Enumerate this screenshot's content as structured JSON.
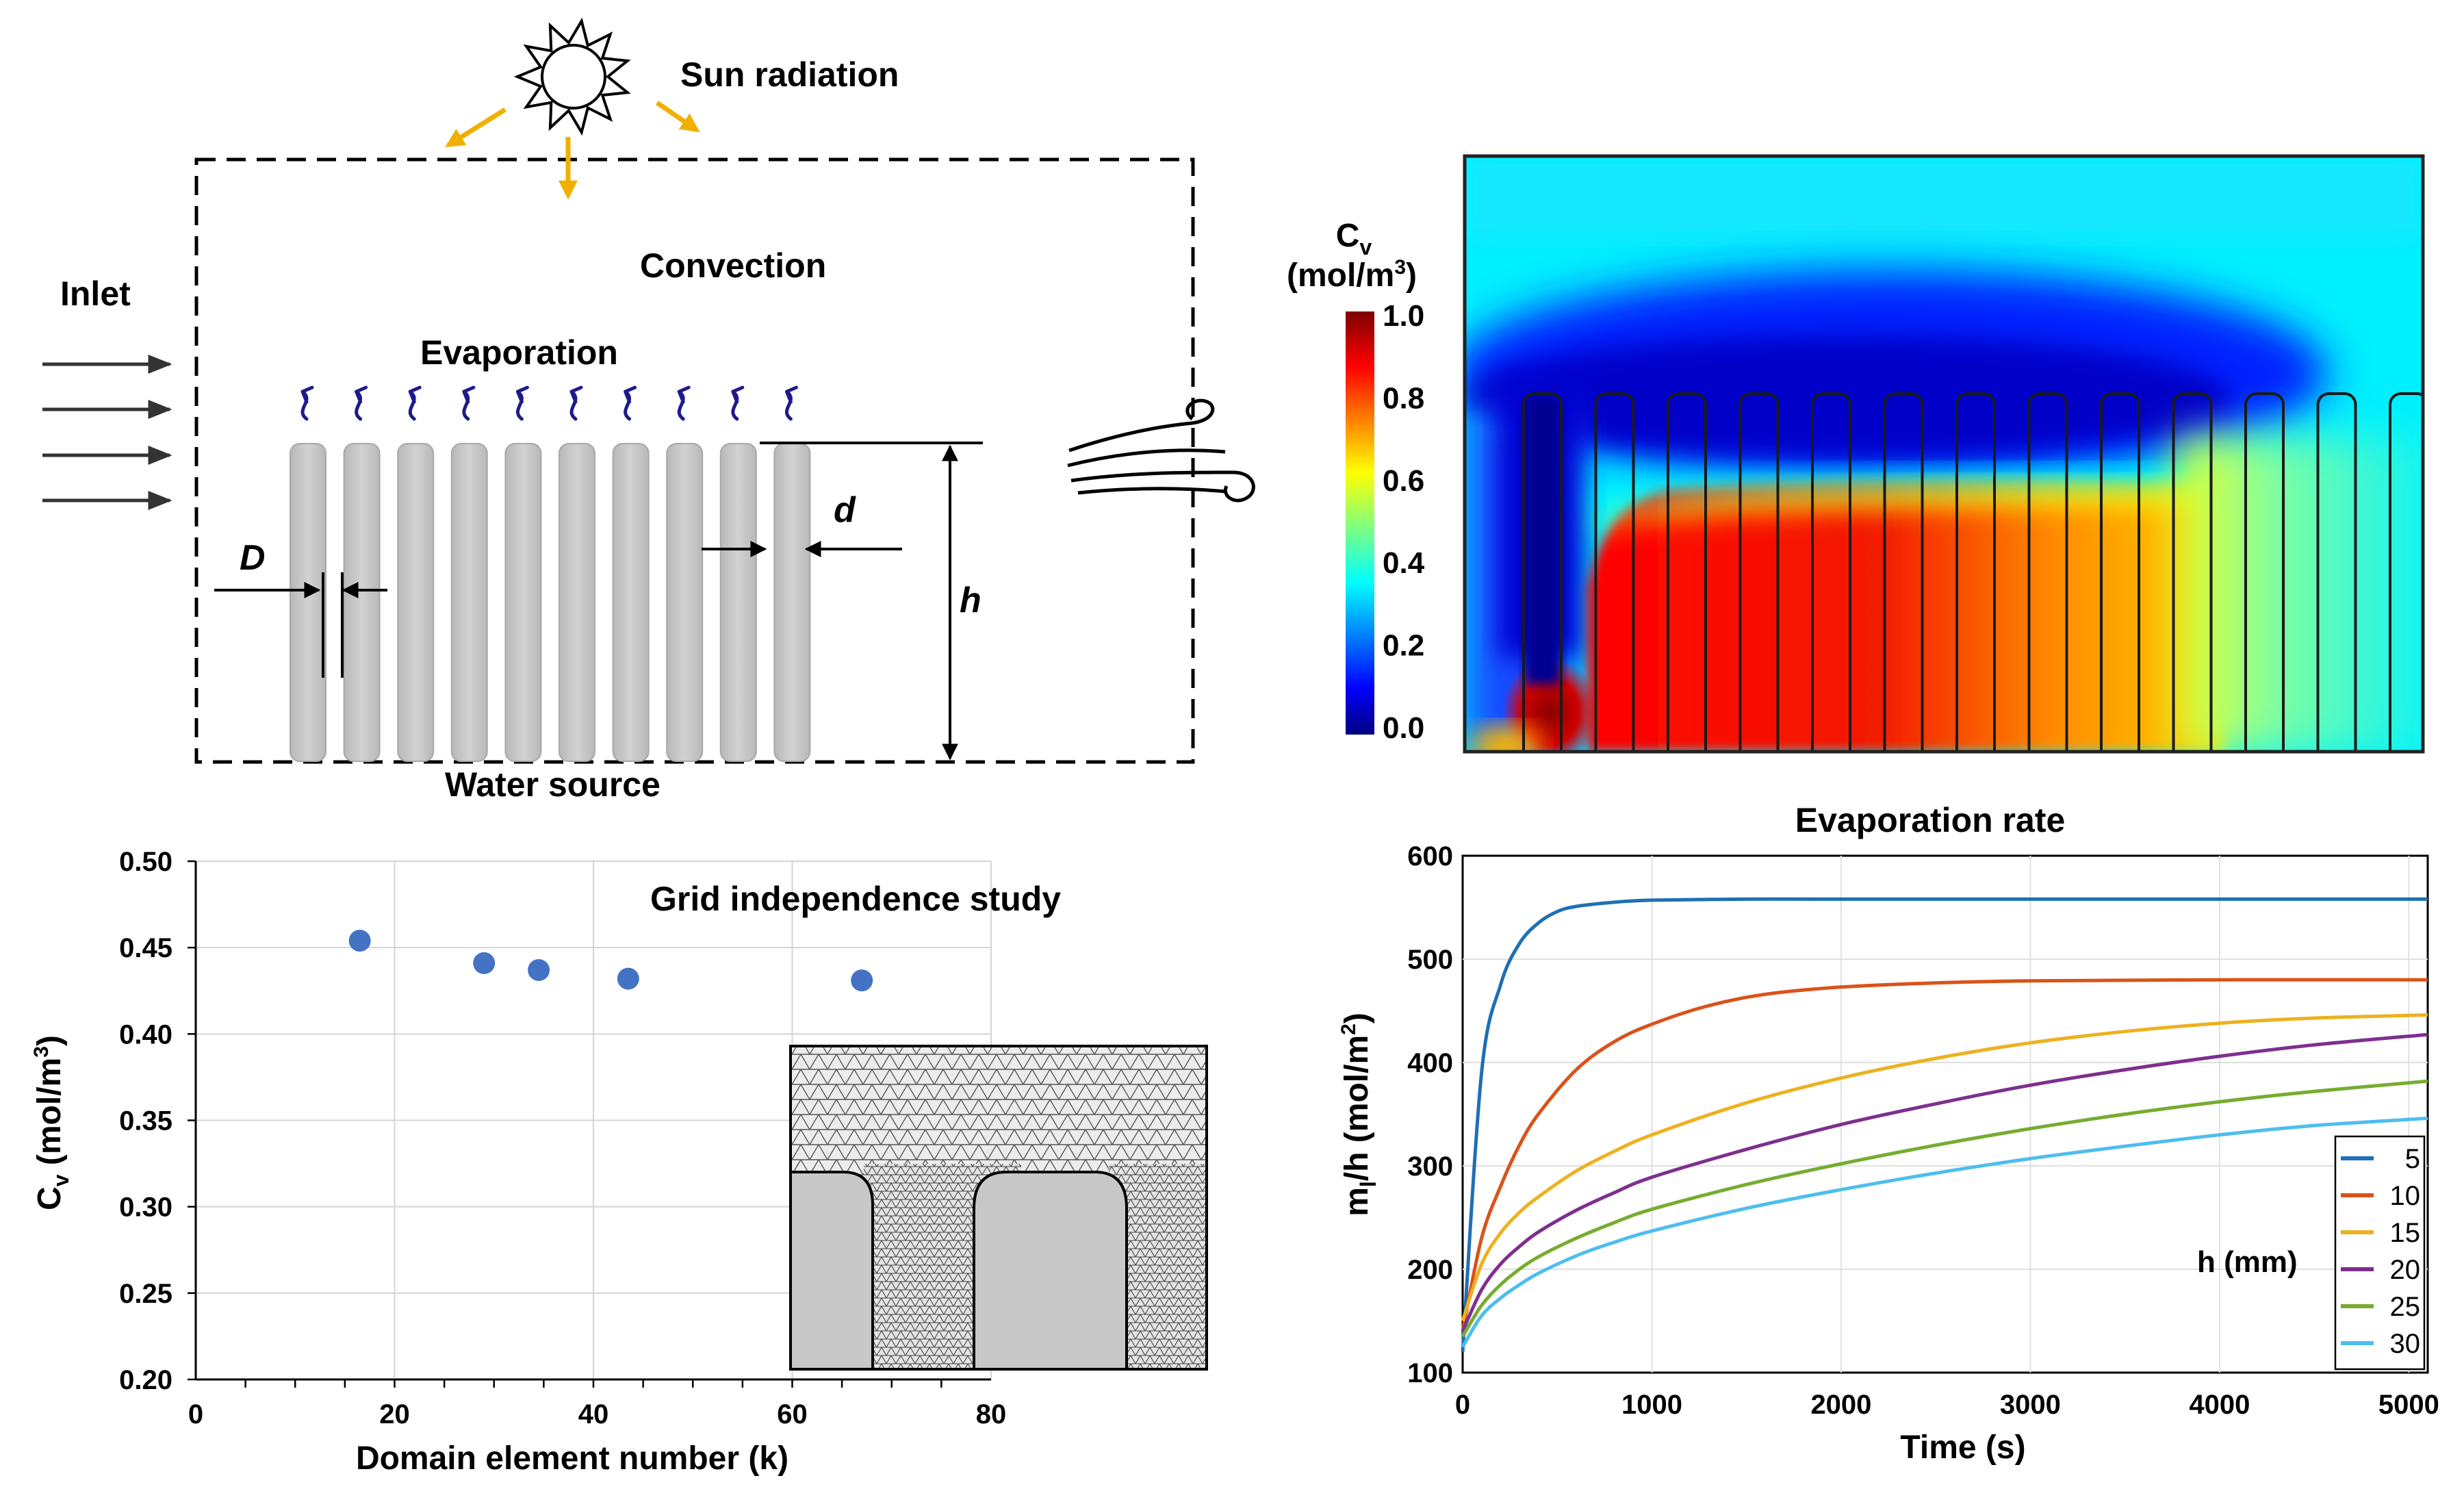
{
  "schematic": {
    "sun_label": "Sun radiation",
    "inlet_label": "Inlet",
    "convection_label": "Convection",
    "evaporation_label": "Evaporation",
    "water_source_label": "Water source",
    "dim_D": "D",
    "dim_d": "d",
    "dim_h": "h",
    "pillar_count": 10,
    "accent_color": "#f0b000",
    "vapor_color": "#1e1a8c"
  },
  "colormap": {
    "cbar_title": "C",
    "cbar_sub": "v",
    "cbar_unit_pre": "(mol/m",
    "cbar_unit_sup": "3",
    "cbar_unit_post": ")",
    "cbar_ticks": [
      "1.0",
      "0.8",
      "0.6",
      "0.4",
      "0.2",
      "0.0"
    ],
    "pillar_count": 14
  },
  "chart_data": [
    {
      "type": "scatter",
      "title": "Grid independence study",
      "xlabel": "Domain element number (k)",
      "ylabel_main": "C",
      "ylabel_sub": "v",
      "ylabel_unit_pre": " (mol/m",
      "ylabel_unit_sup": "3",
      "ylabel_unit_post": ")",
      "xlim": [
        0,
        80
      ],
      "ylim": [
        0.2,
        0.5
      ],
      "x_ticks": [
        "0",
        "20",
        "40",
        "60",
        "80"
      ],
      "y_ticks": [
        "0.50",
        "0.45",
        "0.40",
        "0.35",
        "0.30",
        "0.25",
        "0.20"
      ],
      "point_color": "#4472c4",
      "points": [
        {
          "x": 16.5,
          "y": 0.454
        },
        {
          "x": 29,
          "y": 0.441
        },
        {
          "x": 34.5,
          "y": 0.437
        },
        {
          "x": 43.5,
          "y": 0.432
        },
        {
          "x": 67,
          "y": 0.431
        }
      ],
      "grid": true
    },
    {
      "type": "line",
      "title": "Evaporation rate",
      "xlabel": "Time (s)",
      "ylabel_main": "m",
      "ylabel_sub": "l",
      "ylabel_unit_pre": "/h (mol/m",
      "ylabel_unit_sup": "2",
      "ylabel_unit_post": ")",
      "xlim": [
        0,
        5100
      ],
      "ylim": [
        100,
        600
      ],
      "x_ticks": [
        "0",
        "1000",
        "2000",
        "3000",
        "4000",
        "5000"
      ],
      "y_ticks": [
        "600",
        "500",
        "400",
        "300",
        "200",
        "100"
      ],
      "legend_title": "h (mm)",
      "legend_position": "bottom-right",
      "grid": true,
      "series": [
        {
          "name": "5",
          "color": "#1f6fb4",
          "points": [
            [
              0,
              120
            ],
            [
              100,
              390
            ],
            [
              200,
              475
            ],
            [
              300,
              515
            ],
            [
              400,
              535
            ],
            [
              500,
              546
            ],
            [
              600,
              551
            ],
            [
              800,
              555
            ],
            [
              1000,
              557
            ],
            [
              1500,
              558
            ],
            [
              2000,
              558
            ],
            [
              3000,
              558
            ],
            [
              4000,
              558
            ],
            [
              5100,
              558
            ]
          ]
        },
        {
          "name": "10",
          "color": "#d95319",
          "points": [
            [
              0,
              140
            ],
            [
              100,
              230
            ],
            [
              200,
              280
            ],
            [
              300,
              320
            ],
            [
              400,
              350
            ],
            [
              600,
              393
            ],
            [
              800,
              420
            ],
            [
              1000,
              437
            ],
            [
              1300,
              455
            ],
            [
              1600,
              466
            ],
            [
              2000,
              473
            ],
            [
              2500,
              477
            ],
            [
              3000,
              479
            ],
            [
              4000,
              480
            ],
            [
              5100,
              480
            ]
          ]
        },
        {
          "name": "15",
          "color": "#edb120",
          "points": [
            [
              0,
              150
            ],
            [
              100,
              205
            ],
            [
              200,
              235
            ],
            [
              300,
              255
            ],
            [
              400,
              270
            ],
            [
              600,
              295
            ],
            [
              800,
              314
            ],
            [
              1000,
              330
            ],
            [
              1500,
              361
            ],
            [
              2000,
              385
            ],
            [
              2500,
              404
            ],
            [
              3000,
              419
            ],
            [
              3500,
              430
            ],
            [
              4000,
              438
            ],
            [
              4500,
              443
            ],
            [
              5100,
              446
            ]
          ]
        },
        {
          "name": "20",
          "color": "#7e2f8e",
          "points": [
            [
              0,
              140
            ],
            [
              100,
              180
            ],
            [
              200,
              205
            ],
            [
              300,
              222
            ],
            [
              400,
              236
            ],
            [
              600,
              257
            ],
            [
              800,
              274
            ],
            [
              1000,
              289
            ],
            [
              1500,
              316
            ],
            [
              2000,
              340
            ],
            [
              2500,
              360
            ],
            [
              3000,
              378
            ],
            [
              3500,
              393
            ],
            [
              4000,
              406
            ],
            [
              4500,
              417
            ],
            [
              5100,
              427
            ]
          ]
        },
        {
          "name": "25",
          "color": "#77ac30",
          "points": [
            [
              0,
              135
            ],
            [
              100,
              165
            ],
            [
              200,
              185
            ],
            [
              300,
              200
            ],
            [
              400,
              212
            ],
            [
              600,
              230
            ],
            [
              800,
              245
            ],
            [
              1000,
              258
            ],
            [
              1500,
              282
            ],
            [
              2000,
              302
            ],
            [
              2500,
              320
            ],
            [
              3000,
              336
            ],
            [
              3500,
              350
            ],
            [
              4000,
              362
            ],
            [
              4500,
              372
            ],
            [
              5100,
              382
            ]
          ]
        },
        {
          "name": "30",
          "color": "#4dbeee",
          "points": [
            [
              0,
              125
            ],
            [
              100,
              155
            ],
            [
              200,
              172
            ],
            [
              300,
              185
            ],
            [
              400,
              196
            ],
            [
              600,
              213
            ],
            [
              800,
              226
            ],
            [
              1000,
              237
            ],
            [
              1500,
              259
            ],
            [
              2000,
              277
            ],
            [
              2500,
              293
            ],
            [
              3000,
              307
            ],
            [
              3500,
              319
            ],
            [
              4000,
              330
            ],
            [
              4500,
              339
            ],
            [
              5100,
              346
            ]
          ]
        }
      ]
    }
  ]
}
